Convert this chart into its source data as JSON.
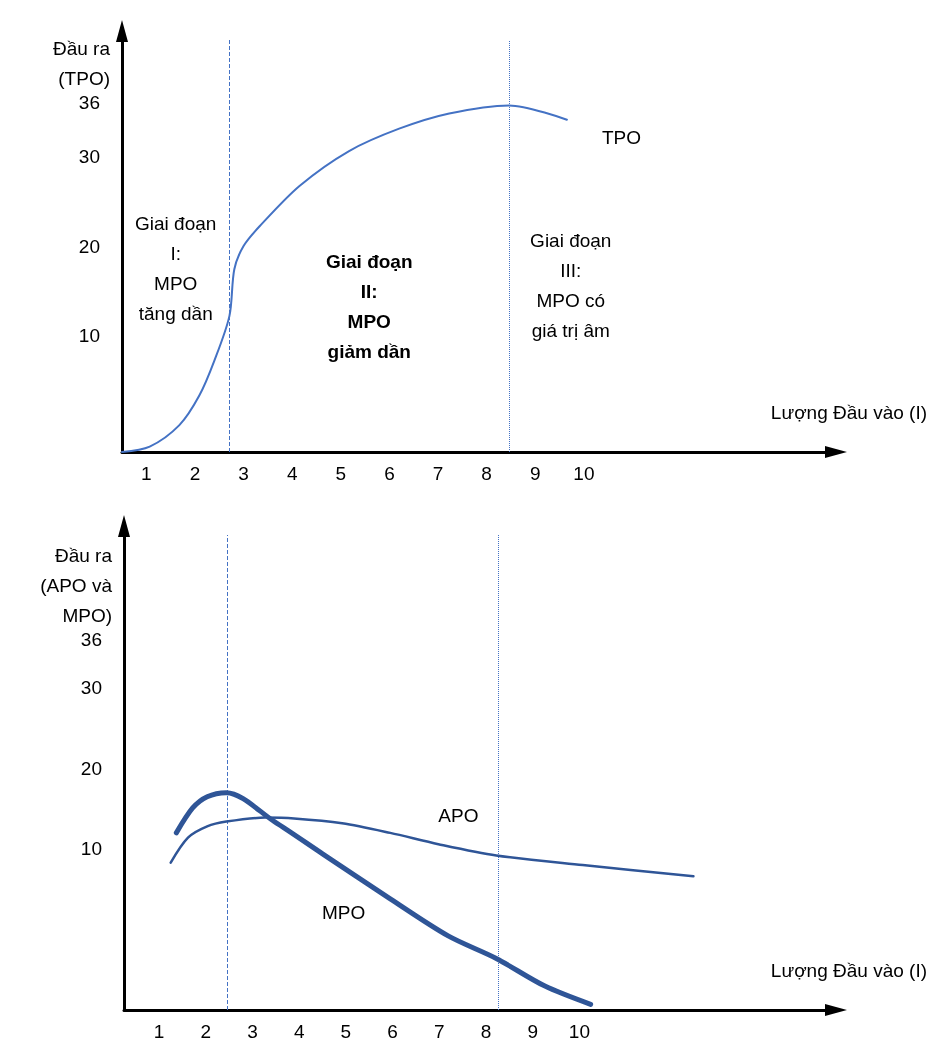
{
  "chart_data": [
    {
      "type": "line",
      "xlabel": "Lượng Đầu vào (I)",
      "ylabel": "Đầu ra\n(TPO)",
      "xlim": [
        0.5,
        15
      ],
      "ylim": [
        -3,
        43
      ],
      "xticks": [
        1,
        2,
        3,
        4,
        5,
        6,
        7,
        8,
        9,
        10
      ],
      "yticks": [
        10,
        20,
        30,
        36
      ],
      "grid": false,
      "series": [
        {
          "name": "TPO",
          "color": "#4472c4",
          "x": [
            0.5,
            1.07,
            1.68,
            2.09,
            2.4,
            2.71,
            2.81,
            3.0,
            3.33,
            4.15,
            5.17,
            6.2,
            7.23,
            8.46,
            9.65
          ],
          "values": [
            -3,
            -2.4,
            0,
            3.3,
            7.2,
            12.2,
            17.4,
            20,
            22.2,
            26.7,
            30.6,
            33.1,
            34.8,
            35.7,
            34.1
          ]
        }
      ],
      "ref_lines": [
        {
          "axis": "x",
          "value": 2.71,
          "color": "#4472c4",
          "line_style": "dashed"
        },
        {
          "axis": "x",
          "value": 8.46,
          "color": "#4472c4",
          "line_style": "dotted"
        }
      ],
      "annotations": [
        "Giai đoạn\nI:\nMPO\ntăng dần",
        "Giai đoạn\nII:\nMPO\ngiảm dần",
        "Giai đoạn\nIII:\nMPO có\ngiá trị âm"
      ]
    },
    {
      "type": "line",
      "xlabel": "Lượng Đầu vào (I)",
      "ylabel": "Đầu ra\n(APO và\nMPO)",
      "xlim": [
        0.25,
        15.3
      ],
      "ylim": [
        -10,
        49
      ],
      "xticks": [
        1,
        2,
        3,
        4,
        5,
        6,
        7,
        8,
        9,
        10
      ],
      "yticks": [
        10,
        20,
        30,
        36
      ],
      "grid": false,
      "series": [
        {
          "name": "APO",
          "color": "#2f5597",
          "x": [
            1.25,
            1.62,
            2.03,
            2.44,
            3.27,
            3.89,
            4.92,
            5.95,
            6.98,
            8.22,
            10.07,
            12.44
          ],
          "values": [
            8.3,
            11.4,
            12.8,
            13.4,
            13.9,
            13.8,
            13.2,
            12.0,
            10.6,
            9.2,
            8.0,
            6.6
          ]
        },
        {
          "name": "MPO",
          "color": "#2f5597",
          "x": [
            1.37,
            1.72,
            2.03,
            2.44,
            3.47,
            4.5,
            5.95,
            7.19,
            8.22,
            9.25,
            10.24
          ],
          "values": [
            12.0,
            15.1,
            16.5,
            17.0,
            13.4,
            9.4,
            3.8,
            -0.8,
            -3.6,
            -7.0,
            -9.3
          ]
        }
      ],
      "ref_lines": [
        {
          "axis": "x",
          "value": 2.46,
          "color": "#4472c4",
          "line_style": "dashed"
        },
        {
          "axis": "x",
          "value": 8.27,
          "color": "#4472c4",
          "line_style": "dotted"
        }
      ]
    }
  ]
}
